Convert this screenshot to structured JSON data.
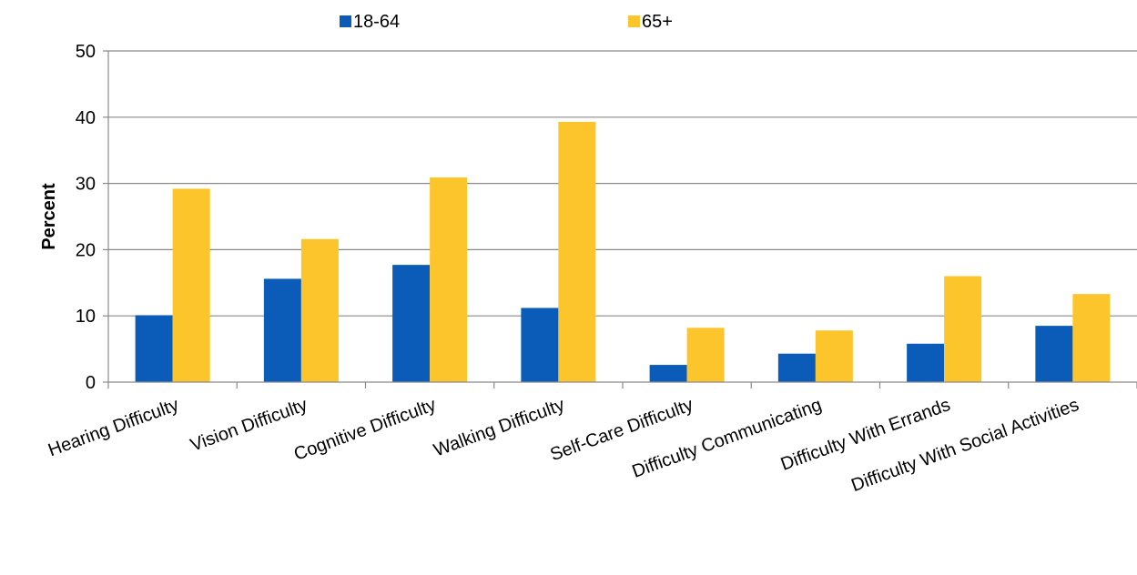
{
  "chart_data": {
    "type": "bar",
    "title": "",
    "xlabel": "",
    "ylabel": "Percent",
    "ylim": [
      0,
      50
    ],
    "yticks": [
      0,
      10,
      20,
      30,
      40,
      50
    ],
    "grid": true,
    "legend_position": "top",
    "categories": [
      "Hearing Difficulty",
      "Vision Difficulty",
      "Cognitive Difficulty",
      "Walking Difficulty",
      "Self-Care Difficulty",
      "Difficulty Communicating",
      "Difficulty With Errands",
      "Difficulty With Social Activities"
    ],
    "series": [
      {
        "name": "18-64",
        "color": "#0a5cb8",
        "values": [
          10.1,
          15.6,
          17.7,
          11.2,
          2.6,
          4.3,
          5.8,
          8.5
        ]
      },
      {
        "name": "65+",
        "color": "#fcc52c",
        "values": [
          29.2,
          21.6,
          30.9,
          39.3,
          8.2,
          7.8,
          16.0,
          13.3
        ]
      }
    ]
  }
}
